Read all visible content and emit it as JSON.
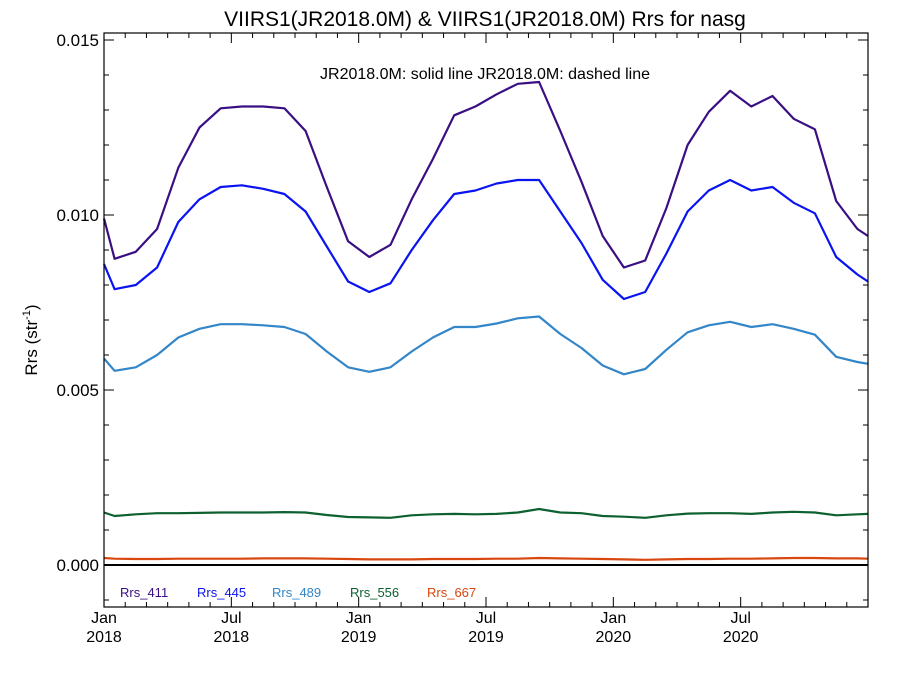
{
  "chart_data": {
    "type": "line",
    "title": "VIIRS1(JR2018.0M) & VIIRS1(JR2018.0M)  Rrs for nasg",
    "subtitle": "JR2018.0M: solid line   JR2018.0M: dashed line",
    "ylabel_main": "Rrs (str",
    "ylabel_sup": "-1",
    "ylabel_close": ")",
    "xlim": [
      0,
      36
    ],
    "ylim": [
      -0.0012,
      0.0152
    ],
    "grid": false,
    "legend_position": "bottom-left",
    "y_ticks": [
      {
        "value": 0.0,
        "label": "0.000"
      },
      {
        "value": 0.005,
        "label": "0.005"
      },
      {
        "value": 0.01,
        "label": "0.010"
      },
      {
        "value": 0.015,
        "label": "0.015"
      }
    ],
    "x_ticks": [
      {
        "value": 0,
        "month": "Jan",
        "year": "2018"
      },
      {
        "value": 6,
        "month": "Jul",
        "year": "2018"
      },
      {
        "value": 12,
        "month": "Jan",
        "year": "2019"
      },
      {
        "value": 18,
        "month": "Jul",
        "year": "2019"
      },
      {
        "value": 24,
        "month": "Jan",
        "year": "2020"
      },
      {
        "value": 30,
        "month": "Jul",
        "year": "2020"
      }
    ],
    "x": [
      0,
      0.5,
      1.5,
      2.5,
      3.5,
      4.5,
      5.5,
      6.5,
      7.5,
      8.5,
      9.5,
      10.5,
      11.5,
      12.5,
      13.5,
      14.5,
      15.5,
      16.5,
      17.5,
      18.5,
      19.5,
      20.5,
      21.5,
      22.5,
      23.5,
      24.5,
      25.5,
      26.5,
      27.5,
      28.5,
      29.5,
      30.5,
      31.5,
      32.5,
      33.5,
      34.5,
      35.5,
      36
    ],
    "series": [
      {
        "name": "Rrs_411",
        "color": "#3a0f84",
        "values": [
          0.0099,
          0.00875,
          0.00895,
          0.0096,
          0.01135,
          0.0125,
          0.01305,
          0.0131,
          0.0131,
          0.01305,
          0.0124,
          0.0108,
          0.00925,
          0.0088,
          0.00915,
          0.01045,
          0.0116,
          0.01285,
          0.0131,
          0.01345,
          0.01375,
          0.0138,
          0.0124,
          0.01095,
          0.0094,
          0.0085,
          0.0087,
          0.0102,
          0.012,
          0.01295,
          0.01355,
          0.0131,
          0.0134,
          0.01275,
          0.01245,
          0.0104,
          0.0096,
          0.0094
        ]
      },
      {
        "name": "Rrs_445",
        "color": "#0a14f0",
        "values": [
          0.0086,
          0.00788,
          0.008,
          0.0085,
          0.0098,
          0.01045,
          0.0108,
          0.01085,
          0.01075,
          0.0106,
          0.0101,
          0.0091,
          0.0081,
          0.0078,
          0.00805,
          0.009,
          0.00985,
          0.0106,
          0.0107,
          0.0109,
          0.011,
          0.011,
          0.0101,
          0.0092,
          0.00815,
          0.0076,
          0.0078,
          0.0089,
          0.0101,
          0.0107,
          0.011,
          0.0107,
          0.0108,
          0.01035,
          0.01005,
          0.0088,
          0.0083,
          0.0081
        ]
      },
      {
        "name": "Rrs_489",
        "color": "#3386c8",
        "values": [
          0.0059,
          0.00555,
          0.00565,
          0.006,
          0.0065,
          0.00675,
          0.00688,
          0.00688,
          0.00685,
          0.0068,
          0.0066,
          0.0061,
          0.00565,
          0.00552,
          0.00565,
          0.0061,
          0.0065,
          0.0068,
          0.0068,
          0.0069,
          0.00705,
          0.0071,
          0.0066,
          0.0062,
          0.0057,
          0.00545,
          0.0056,
          0.00615,
          0.00665,
          0.00685,
          0.00695,
          0.0068,
          0.00688,
          0.00675,
          0.00658,
          0.00595,
          0.0058,
          0.00575
        ]
      },
      {
        "name": "Rrs_556",
        "color": "#0d6030",
        "values": [
          0.0015,
          0.0014,
          0.00145,
          0.00148,
          0.00148,
          0.00149,
          0.0015,
          0.0015,
          0.0015,
          0.00151,
          0.0015,
          0.00143,
          0.00137,
          0.00136,
          0.00135,
          0.00142,
          0.00145,
          0.00146,
          0.00145,
          0.00146,
          0.0015,
          0.0016,
          0.0015,
          0.00148,
          0.0014,
          0.00138,
          0.00135,
          0.00142,
          0.00147,
          0.00148,
          0.00148,
          0.00146,
          0.0015,
          0.00152,
          0.0015,
          0.00142,
          0.00145,
          0.00146
        ]
      },
      {
        "name": "Rrs_667",
        "color": "#d8470f",
        "values": [
          0.0002,
          0.00018,
          0.00017,
          0.00017,
          0.00018,
          0.00018,
          0.00018,
          0.00018,
          0.00019,
          0.00019,
          0.00019,
          0.00018,
          0.00017,
          0.00016,
          0.00016,
          0.00016,
          0.00017,
          0.00017,
          0.00017,
          0.00018,
          0.00018,
          0.0002,
          0.00019,
          0.00018,
          0.00017,
          0.00016,
          0.00015,
          0.00016,
          0.00017,
          0.00017,
          0.00018,
          0.00018,
          0.00019,
          0.0002,
          0.0002,
          0.00019,
          0.00019,
          0.00018
        ]
      }
    ]
  }
}
